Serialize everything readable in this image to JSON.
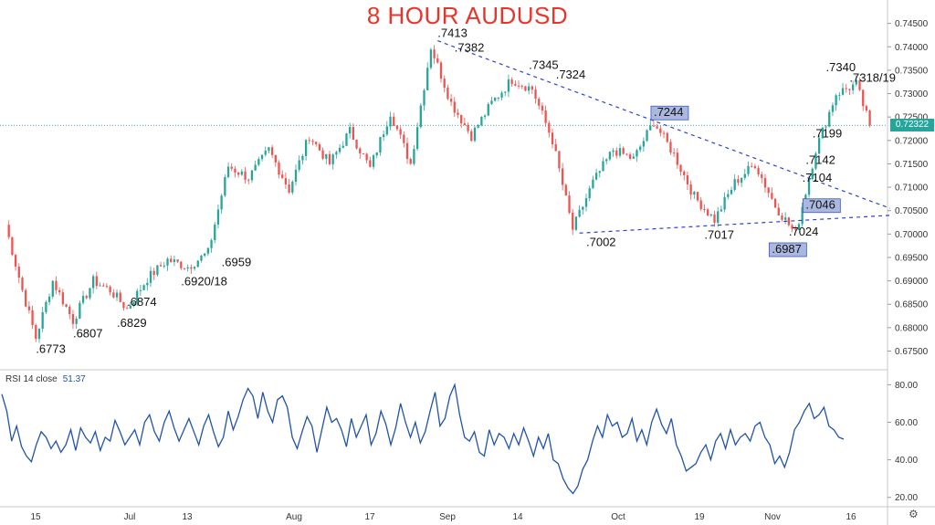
{
  "title": "8 HOUR AUDUSD",
  "colors": {
    "title": "#e8352c",
    "up": "#26a69a",
    "down": "#ef5350",
    "trendline": "#2a46c8",
    "rsi": "#2153a8",
    "box": "#aab8e0"
  },
  "current_price_label": "0.72322",
  "rsi_legend": {
    "label": "RSI 14 close",
    "value": "51.37"
  },
  "chart_data": [
    {
      "type": "candlestick",
      "title": "8 HOUR AUDUSD",
      "ylim": [
        0.671,
        0.75
      ],
      "y_ticks": [
        "0.74500",
        "0.74000",
        "0.73500",
        "0.73000",
        "0.72500",
        "0.72000",
        "0.71500",
        "0.71000",
        "0.70500",
        "0.70000",
        "0.69500",
        "0.69000",
        "0.68500",
        "0.68000",
        "0.67500"
      ],
      "x_ticks": [
        "15",
        "Jul",
        "13",
        "Aug",
        "17",
        "Sep",
        "14",
        "Oct",
        "19",
        "Nov",
        "16"
      ],
      "key_closes": [
        {
          "x": 0,
          "y": 0.702
        },
        {
          "x": 5,
          "y": 0.688
        },
        {
          "x": 9,
          "y": 0.6778
        },
        {
          "x": 14,
          "y": 0.69
        },
        {
          "x": 20,
          "y": 0.6815
        },
        {
          "x": 26,
          "y": 0.69
        },
        {
          "x": 31,
          "y": 0.688
        },
        {
          "x": 36,
          "y": 0.684
        },
        {
          "x": 42,
          "y": 0.6905
        },
        {
          "x": 48,
          "y": 0.6945
        },
        {
          "x": 54,
          "y": 0.693
        },
        {
          "x": 60,
          "y": 0.696
        },
        {
          "x": 66,
          "y": 0.7145
        },
        {
          "x": 72,
          "y": 0.712
        },
        {
          "x": 78,
          "y": 0.718
        },
        {
          "x": 84,
          "y": 0.7095
        },
        {
          "x": 90,
          "y": 0.721
        },
        {
          "x": 96,
          "y": 0.715
        },
        {
          "x": 102,
          "y": 0.722
        },
        {
          "x": 108,
          "y": 0.714
        },
        {
          "x": 114,
          "y": 0.726
        },
        {
          "x": 120,
          "y": 0.715
        },
        {
          "x": 126,
          "y": 0.74
        },
        {
          "x": 132,
          "y": 0.728
        },
        {
          "x": 138,
          "y": 0.721
        },
        {
          "x": 144,
          "y": 0.728
        },
        {
          "x": 150,
          "y": 0.733
        },
        {
          "x": 156,
          "y": 0.731
        },
        {
          "x": 162,
          "y": 0.72
        },
        {
          "x": 168,
          "y": 0.701
        },
        {
          "x": 174,
          "y": 0.711
        },
        {
          "x": 180,
          "y": 0.718
        },
        {
          "x": 186,
          "y": 0.716
        },
        {
          "x": 192,
          "y": 0.724
        },
        {
          "x": 198,
          "y": 0.717
        },
        {
          "x": 204,
          "y": 0.708
        },
        {
          "x": 210,
          "y": 0.703
        },
        {
          "x": 216,
          "y": 0.711
        },
        {
          "x": 222,
          "y": 0.715
        },
        {
          "x": 228,
          "y": 0.706
        },
        {
          "x": 234,
          "y": 0.7
        },
        {
          "x": 240,
          "y": 0.718
        },
        {
          "x": 246,
          "y": 0.73
        },
        {
          "x": 252,
          "y": 0.732
        },
        {
          "x": 256,
          "y": 0.7232
        }
      ],
      "annotations": [
        {
          "text": ".6773",
          "x": 9,
          "y": 0.6773
        },
        {
          "text": ".6807",
          "x": 20,
          "y": 0.6807
        },
        {
          "text": ".6829",
          "x": 33,
          "y": 0.6829
        },
        {
          "text": ".6874",
          "x": 36,
          "y": 0.6874
        },
        {
          "text": ".6920/18",
          "x": 52,
          "y": 0.6918
        },
        {
          "text": ".6959",
          "x": 64,
          "y": 0.6959
        },
        {
          "text": ".7413",
          "x": 128,
          "y": 0.7413
        },
        {
          "text": ".7382",
          "x": 133,
          "y": 0.7382
        },
        {
          "text": ".7345",
          "x": 155,
          "y": 0.7345
        },
        {
          "text": ".7324",
          "x": 163,
          "y": 0.7324
        },
        {
          "text": ".7002",
          "x": 172,
          "y": 0.7002
        },
        {
          "text": ".7244",
          "x": 192,
          "y": 0.7244,
          "boxed": true
        },
        {
          "text": ".7017",
          "x": 207,
          "y": 0.7017
        },
        {
          "text": ".6987",
          "x": 227,
          "y": 0.6987,
          "boxed": true
        },
        {
          "text": ".7024",
          "x": 232,
          "y": 0.7024
        },
        {
          "text": ".7046",
          "x": 237,
          "y": 0.7046,
          "boxed": true
        },
        {
          "text": ".7104",
          "x": 236,
          "y": 0.7104
        },
        {
          "text": ".7142",
          "x": 237,
          "y": 0.7142
        },
        {
          "text": ".7199",
          "x": 239,
          "y": 0.7199
        },
        {
          "text": ".7340",
          "x": 243,
          "y": 0.734
        },
        {
          "text": ".7318/19",
          "x": 250,
          "y": 0.7318
        }
      ],
      "trendlines": [
        {
          "from": {
            "x": 128,
            "y": 0.7413
          },
          "to": {
            "x": 262,
            "y": 0.7055
          }
        },
        {
          "from": {
            "x": 170,
            "y": 0.7002
          },
          "to": {
            "x": 262,
            "y": 0.704
          }
        }
      ]
    },
    {
      "type": "line",
      "title": "RSI 14 close",
      "ylim": [
        15,
        87
      ],
      "y_ticks": [
        "80.00",
        "60.00",
        "40.00",
        "20.00"
      ],
      "series": [
        {
          "name": "RSI 14 close",
          "values": [
            75,
            66,
            50,
            58,
            47,
            42,
            39,
            48,
            55,
            52,
            46,
            50,
            44,
            48,
            56,
            45,
            57,
            52,
            49,
            55,
            45,
            52,
            50,
            61,
            55,
            48,
            52,
            56,
            48,
            60,
            64,
            55,
            50,
            60,
            66,
            57,
            50,
            56,
            62,
            55,
            48,
            58,
            64,
            55,
            47,
            52,
            66,
            56,
            63,
            72,
            78,
            74,
            62,
            76,
            66,
            60,
            72,
            74,
            68,
            52,
            46,
            55,
            63,
            58,
            44,
            56,
            68,
            60,
            62,
            56,
            47,
            62,
            52,
            58,
            64,
            48,
            54,
            66,
            59,
            48,
            57,
            70,
            60,
            52,
            60,
            49,
            55,
            66,
            76,
            58,
            62,
            74,
            80,
            64,
            52,
            50,
            55,
            44,
            42,
            56,
            48,
            54,
            52,
            46,
            54,
            48,
            57,
            50,
            42,
            52,
            46,
            54,
            40,
            38,
            30,
            25,
            22,
            26,
            35,
            40,
            50,
            58,
            52,
            64,
            58,
            60,
            52,
            54,
            62,
            50,
            56,
            48,
            60,
            67,
            59,
            54,
            62,
            48,
            42,
            34,
            36,
            38,
            44,
            48,
            40,
            50,
            54,
            46,
            56,
            48,
            52,
            54,
            50,
            58,
            60,
            52,
            48,
            38,
            42,
            36,
            44,
            56,
            60,
            66,
            70,
            62,
            64,
            68,
            58,
            56,
            52,
            51
          ]
        }
      ],
      "last_value": 51.37
    }
  ]
}
